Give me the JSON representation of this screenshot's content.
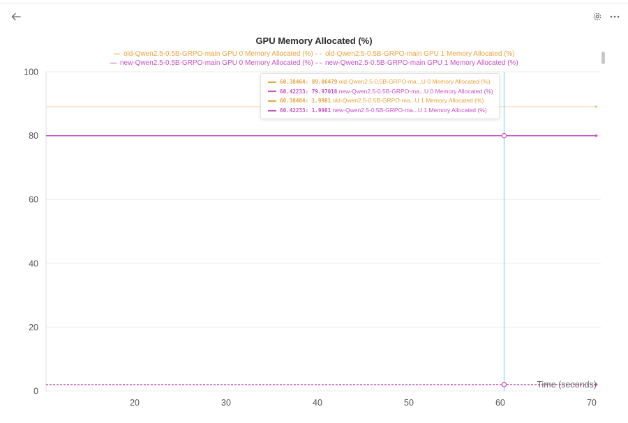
{
  "header": {
    "back_icon": "arrow-left-icon",
    "settings_icon": "gear-icon",
    "more_icon": "more-horizontal-icon"
  },
  "colors": {
    "old": "#e8a33d",
    "new": "#c74fc6",
    "cursor": "#7fdaf0",
    "grid": "#ececec",
    "axis_text": "#555555"
  },
  "chart_data": {
    "type": "line",
    "title": "GPU Memory Allocated (%)",
    "xlabel": "Time (seconds)",
    "ylabel": "",
    "xlim": [
      10.3,
      71
    ],
    "ylim": [
      0,
      100
    ],
    "x_ticks": [
      20,
      30,
      40,
      50,
      60,
      70
    ],
    "y_ticks": [
      0,
      20,
      40,
      60,
      80,
      100
    ],
    "grid": true,
    "legend_position": "top",
    "series": [
      {
        "name": "old-Qwen2.5-0.5B-GRPO-main GPU 0 Memory Allocated (%)",
        "color": "#e8a33d",
        "dash": "solid",
        "x": [
          10.3,
          70.5
        ],
        "y": [
          89.06479,
          89.06479
        ]
      },
      {
        "name": "old-Qwen2.5-0.5B-GRPO-main GPU 1 Memory Allocated (%)",
        "color": "#e8a33d",
        "dash": "dashed",
        "x": [
          10.3,
          70.5
        ],
        "y": [
          1.9981,
          1.9981
        ]
      },
      {
        "name": "new-Qwen2.5-0.5B-GRPO-main GPU 0 Memory Allocated (%)",
        "color": "#c74fc6",
        "dash": "solid",
        "x": [
          10.3,
          70.5
        ],
        "y": [
          79.97018,
          79.97018
        ]
      },
      {
        "name": "new-Qwen2.5-0.5B-GRPO-main GPU 1 Memory Allocated (%)",
        "color": "#c74fc6",
        "dash": "dashed",
        "x": [
          10.3,
          70.5
        ],
        "y": [
          1.9981,
          1.9981
        ]
      }
    ],
    "cursor": {
      "x": 60.42233
    },
    "tooltip": [
      {
        "x": "60.38464",
        "y": "89.06479",
        "label": "old-Qwen2.5-0.5B-GRPO-ma...U 0 Memory Allocated (%)",
        "color": "#e8a33d",
        "dash": "solid"
      },
      {
        "x": "60.42233",
        "y": "79.97018",
        "label": "new-Qwen2.5-0.5B-GRPO-ma...U 0 Memory Allocated (%)",
        "color": "#c74fc6",
        "dash": "solid"
      },
      {
        "x": "60.38464",
        "y": "1.9981",
        "label": "old-Qwen2.5-0.5B-GRPO-ma...U 1 Memory Allocated (%)",
        "color": "#e8a33d",
        "dash": "dashed"
      },
      {
        "x": "60.42233",
        "y": "1.9981",
        "label": "new-Qwen2.5-0.5B-GRPO-ma...U 1 Memory Allocated (%)",
        "color": "#c74fc6",
        "dash": "dashed"
      }
    ]
  }
}
